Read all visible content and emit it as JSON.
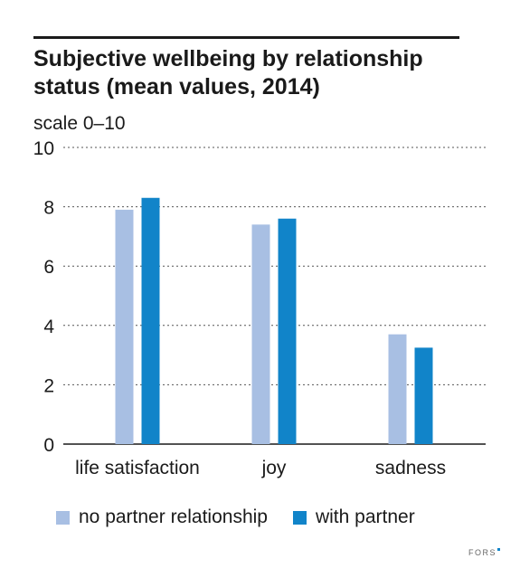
{
  "title": "Subjective wellbeing by relationship status (mean values, 2014)",
  "unit_label": "scale 0–10",
  "logo": "FORS",
  "colors": {
    "no_partner": "#a8bfe3",
    "with_partner": "#1184c9",
    "grid": "#555555",
    "axis": "#1a1a1a"
  },
  "chart_data": {
    "type": "bar",
    "categories": [
      "life satisfaction",
      "joy",
      "sadness"
    ],
    "series": [
      {
        "name": "no partner relationship",
        "values": [
          7.9,
          7.4,
          3.7
        ]
      },
      {
        "name": "with partner",
        "values": [
          8.3,
          7.6,
          3.25
        ]
      }
    ],
    "ylim": [
      0,
      10
    ],
    "yticks": [
      0,
      2,
      4,
      6,
      8,
      10
    ],
    "ylabel": "scale 0–10",
    "grid": true,
    "legend": "bottom"
  }
}
